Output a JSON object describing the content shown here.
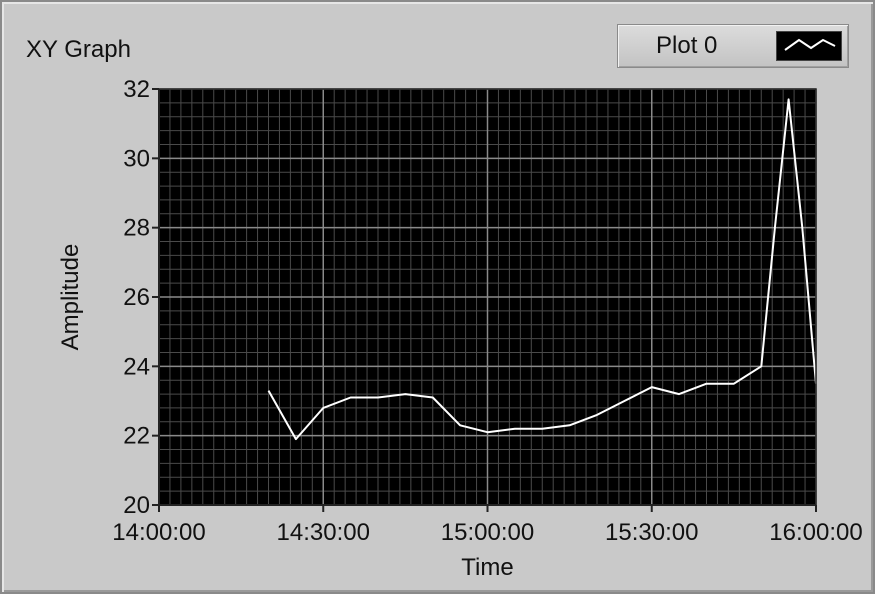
{
  "graph": {
    "title": "XY Graph",
    "legend_label": "Plot 0"
  },
  "chart_data": {
    "type": "line",
    "xlabel": "Time",
    "ylabel": "Amplitude",
    "xlim": [
      "14:00:00",
      "16:00:00"
    ],
    "ylim": [
      20,
      32
    ],
    "x_ticks": [
      "14:00:00",
      "14:30:00",
      "15:00:00",
      "15:30:00",
      "16:00:00"
    ],
    "y_ticks": [
      20,
      22,
      24,
      26,
      28,
      30,
      32
    ],
    "grid": true,
    "background_color": "#000000",
    "grid_color": "#8a8a8a",
    "line_color": "#ffffff",
    "series": [
      {
        "name": "Plot 0",
        "x": [
          "14:20:00",
          "14:25:00",
          "14:30:00",
          "14:35:00",
          "14:40:00",
          "14:45:00",
          "14:50:00",
          "14:55:00",
          "15:00:00",
          "15:05:00",
          "15:10:00",
          "15:15:00",
          "15:20:00",
          "15:25:00",
          "15:30:00",
          "15:35:00",
          "15:40:00",
          "15:45:00",
          "15:50:00",
          "15:52:30",
          "15:55:00",
          "15:57:30",
          "16:00:00"
        ],
        "y": [
          23.3,
          21.9,
          22.8,
          23.1,
          23.1,
          23.2,
          23.1,
          22.3,
          22.1,
          22.2,
          22.2,
          22.3,
          22.6,
          23.0,
          23.4,
          23.2,
          23.5,
          23.5,
          24.0,
          28.0,
          31.7,
          28.0,
          23.5
        ]
      }
    ]
  }
}
